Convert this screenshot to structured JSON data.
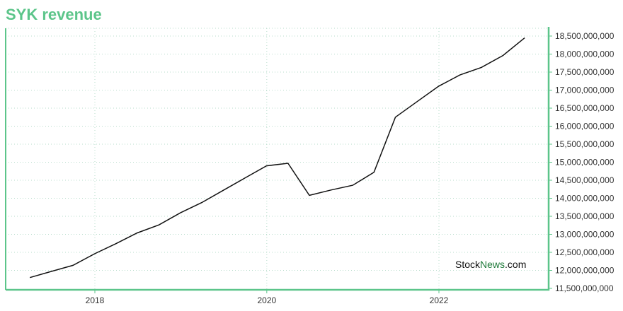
{
  "chart_data": {
    "type": "line",
    "title": "SYK revenue",
    "xlabel": "",
    "ylabel": "",
    "x": [
      "2017-03-31",
      "2017-06-30",
      "2017-09-30",
      "2017-12-31",
      "2018-03-31",
      "2018-06-30",
      "2018-09-30",
      "2018-12-31",
      "2019-03-31",
      "2019-06-30",
      "2019-09-30",
      "2019-12-31",
      "2020-03-31",
      "2020-06-30",
      "2020-09-30",
      "2020-12-31",
      "2021-03-31",
      "2021-06-30",
      "2021-09-30",
      "2021-12-31",
      "2022-03-31",
      "2022-06-30",
      "2022-09-30",
      "2022-12-31"
    ],
    "series": [
      {
        "values": [
          11800000000,
          11970000000,
          12140000000,
          12460000000,
          12740000000,
          13040000000,
          13260000000,
          13600000000,
          13880000000,
          14220000000,
          14560000000,
          14900000000,
          14970000000,
          14080000000,
          14230000000,
          14360000000,
          14720000000,
          16250000000,
          16680000000,
          17110000000,
          17420000000,
          17630000000,
          17960000000,
          18450000000
        ]
      }
    ],
    "x_ticks": [
      "2018",
      "2020",
      "2022"
    ],
    "y_ticks": [
      "11,500,000,000",
      "12,000,000,000",
      "12,500,000,000",
      "13,000,000,000",
      "13,500,000,000",
      "14,000,000,000",
      "14,500,000,000",
      "15,000,000,000",
      "15,500,000,000",
      "16,000,000,000",
      "16,500,000,000",
      "17,000,000,000",
      "17,500,000,000",
      "18,000,000,000",
      "18,500,000,000"
    ],
    "ylim": [
      11500000000,
      18700000000
    ],
    "grid": true,
    "colors": {
      "line": "#111111",
      "axis": "#5cc58a",
      "grid": "#b7dccb",
      "title": "#5cc58a"
    }
  },
  "watermark": {
    "part1": "Stock",
    "part2": "News",
    "part3": ".com"
  }
}
